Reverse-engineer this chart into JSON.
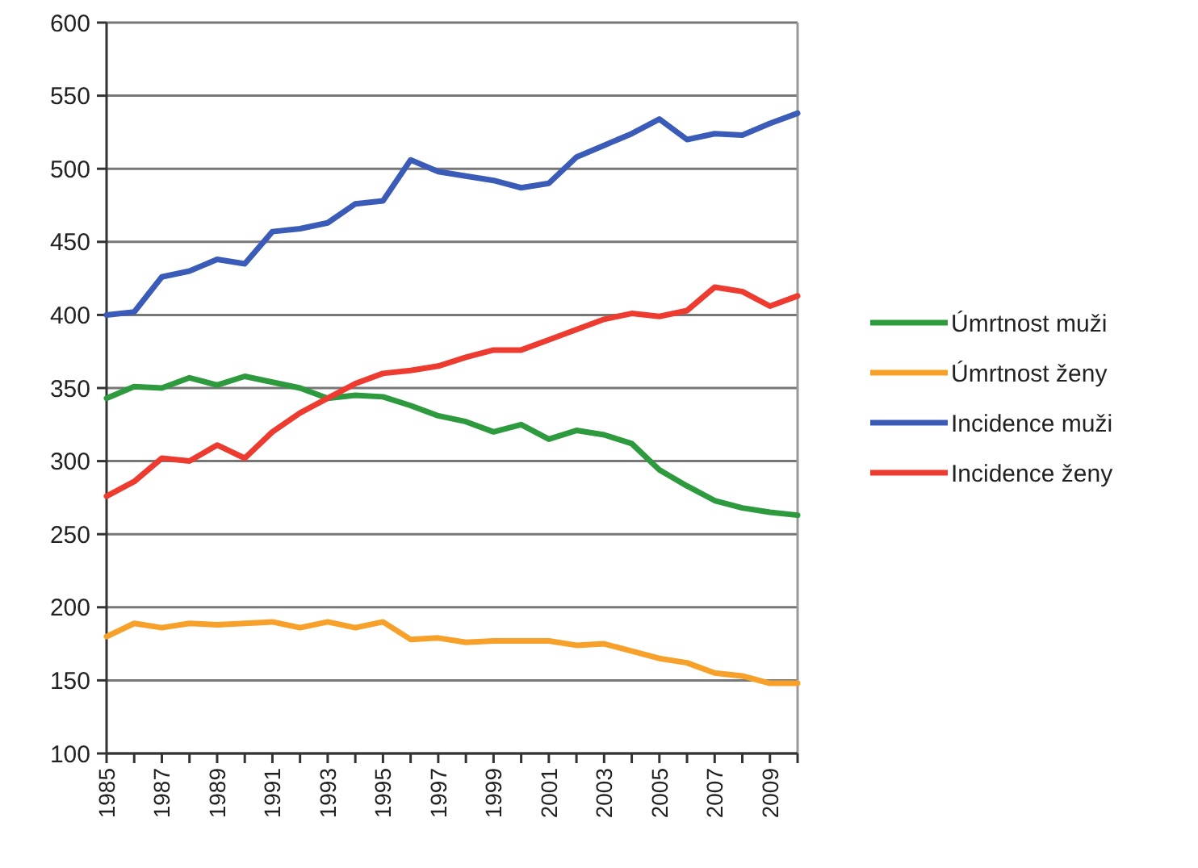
{
  "chart_data": {
    "type": "line",
    "x": [
      1985,
      1986,
      1987,
      1988,
      1989,
      1990,
      1991,
      1992,
      1993,
      1994,
      1995,
      1996,
      1997,
      1998,
      1999,
      2000,
      2001,
      2002,
      2003,
      2004,
      2005,
      2006,
      2007,
      2008,
      2009,
      2010
    ],
    "series": [
      {
        "name": "Úmrtnost muži",
        "color": "#2e9a3e",
        "values": [
          343,
          351,
          350,
          357,
          352,
          358,
          354,
          350,
          343,
          345,
          344,
          338,
          331,
          327,
          320,
          325,
          315,
          321,
          318,
          312,
          294,
          283,
          273,
          268,
          265,
          263
        ]
      },
      {
        "name": "Úmrtnost ženy",
        "color": "#f7a12a",
        "values": [
          180,
          189,
          186,
          189,
          188,
          189,
          190,
          186,
          190,
          186,
          190,
          178,
          179,
          176,
          177,
          177,
          177,
          174,
          175,
          170,
          165,
          162,
          155,
          153,
          148,
          148
        ]
      },
      {
        "name": "Incidence muži",
        "color": "#3a5cb8",
        "values": [
          400,
          402,
          426,
          430,
          438,
          435,
          457,
          459,
          463,
          476,
          478,
          506,
          498,
          495,
          492,
          487,
          490,
          508,
          516,
          524,
          534,
          520,
          524,
          523,
          531,
          538
        ]
      },
      {
        "name": "Incidence ženy",
        "color": "#ee3b2f",
        "values": [
          276,
          286,
          302,
          300,
          311,
          302,
          320,
          333,
          343,
          353,
          360,
          362,
          365,
          371,
          376,
          376,
          383,
          390,
          397,
          401,
          399,
          403,
          419,
          416,
          406,
          413
        ]
      }
    ],
    "xlim": [
      1985,
      2010
    ],
    "xticks": [
      1985,
      {
        "value": 1986,
        "label": null
      },
      1987,
      {
        "value": 1988,
        "label": null
      },
      1989,
      {
        "value": 1990,
        "label": null
      },
      1991,
      {
        "value": 1992,
        "label": null
      },
      1993,
      {
        "value": 1994,
        "label": null
      },
      1995,
      {
        "value": 1996,
        "label": null
      },
      1997,
      {
        "value": 1998,
        "label": null
      },
      1999,
      {
        "value": 2000,
        "label": null
      },
      2001,
      {
        "value": 2002,
        "label": null
      },
      2003,
      {
        "value": 2004,
        "label": null
      },
      2005,
      {
        "value": 2006,
        "label": null
      },
      2007,
      {
        "value": 2008,
        "label": null
      },
      2009,
      {
        "value": 2010,
        "label": null
      }
    ],
    "ylim": [
      100,
      600
    ],
    "yticks": [
      100,
      150,
      200,
      250,
      300,
      350,
      400,
      450,
      500,
      550,
      600
    ],
    "grid": "y",
    "legend": "right",
    "marker": "none",
    "line_style": "solid"
  }
}
